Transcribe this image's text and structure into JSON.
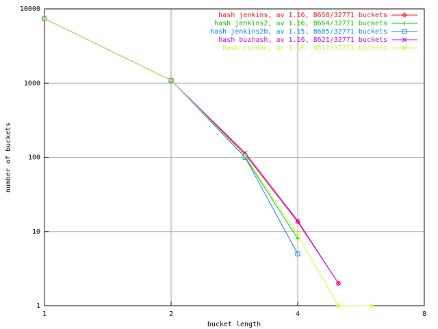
{
  "chart_data": {
    "type": "line",
    "xlabel": "bucket length",
    "ylabel": "number of buckets",
    "xscale": "log",
    "yscale": "log",
    "grid": true,
    "legend": "upper right",
    "x": [
      1,
      2,
      3,
      4,
      5,
      6
    ],
    "xlim": [
      1,
      8
    ],
    "xticks": [
      1,
      2,
      4,
      8
    ],
    "ylim": [
      1,
      10000
    ],
    "yticks": [
      1,
      10,
      100,
      1000,
      10000
    ],
    "series": [
      {
        "name": "hash jenkins, av 1.16, 8658/32771 buckets",
        "color": "#ff0000",
        "marker": "diamond",
        "values": [
          7400,
          1090,
          110,
          13.5,
          2,
          null
        ]
      },
      {
        "name": "hash jenkins2, av 1.16, 8664/32771 buckets",
        "color": "#00c000",
        "marker": "plus",
        "values": [
          7400,
          1090,
          100,
          8,
          null,
          null
        ]
      },
      {
        "name": "hash jenkins2b, av 1.15, 8685/32771 buckets",
        "color": "#0080ff",
        "marker": "square",
        "values": [
          7400,
          1090,
          100,
          5,
          null,
          null
        ]
      },
      {
        "name": "hash buzhash, av 1.16, 8621/32771 buckets",
        "color": "#c000ff",
        "marker": "cross",
        "values": [
          7400,
          1090,
          115,
          14,
          2,
          null
        ]
      },
      {
        "name": "hash random, av 1.16, 8617/32771 buckets",
        "color": "#c0ff40",
        "marker": "star",
        "values": [
          7400,
          1090,
          105,
          9,
          1,
          1
        ]
      }
    ]
  }
}
